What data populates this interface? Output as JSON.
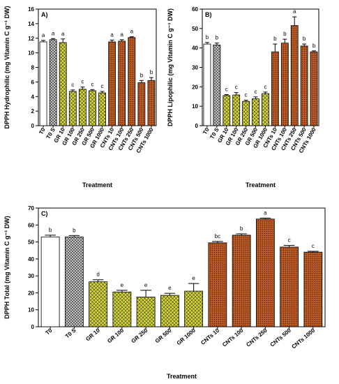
{
  "figure": {
    "panels": [
      {
        "id": "A",
        "panel_label": "A)"
      },
      {
        "id": "B",
        "panel_label": "B)"
      },
      {
        "id": "C",
        "panel_label": "C)"
      }
    ]
  },
  "chart_data": [
    {
      "type": "bar",
      "panel_label": "A)",
      "categories": [
        "T0",
        "T0 S",
        "GR 10",
        "GR 100",
        "GR 250",
        "GR 500",
        "GR 1000",
        "CNTs 10",
        "CNTs 100",
        "CNTs 250",
        "CNTs 500",
        "CNTs 1000"
      ],
      "values": [
        11.5,
        11.8,
        11.4,
        4.7,
        5.0,
        4.8,
        4.5,
        11.5,
        11.6,
        12.1,
        5.9,
        6.2
      ],
      "errors": [
        0.2,
        0.15,
        0.5,
        0.2,
        0.3,
        0.15,
        0.2,
        0.25,
        0.2,
        0.1,
        0.3,
        0.4
      ],
      "letters": [
        "a",
        "a",
        "a",
        "c",
        "c",
        "c",
        "c",
        "a",
        "a",
        "a",
        "b",
        "b"
      ],
      "xlabel": "Treatment",
      "ylabel": "DPPH Hydrophilic (mg Vitamin C g⁻¹ DW)",
      "ylim": [
        0,
        16
      ],
      "yticks": [
        0,
        2,
        4,
        6,
        8,
        10,
        12,
        14,
        16
      ],
      "grid": false,
      "fill_groups": [
        "white",
        "crosshatch",
        "yellow-green hatch",
        "brown dotted"
      ],
      "colors": {
        "white": "#ffffff",
        "gray": "#9a9a9a",
        "yellow": "#d4d43a",
        "brown": "#b5531f"
      }
    },
    {
      "type": "bar",
      "panel_label": "B)",
      "categories": [
        "T0",
        "T0 S",
        "GR 10",
        "GR 100",
        "GR 250",
        "GR 500",
        "GR 1000",
        "CNTs 10",
        "CNTs 100",
        "CNTs 250",
        "CNTs 500",
        "CNTs 1000"
      ],
      "values": [
        42,
        41.5,
        15.5,
        15.8,
        12.5,
        13.8,
        16.5,
        38,
        42.5,
        51.5,
        41,
        38
      ],
      "errors": [
        0.8,
        1.0,
        0.5,
        1.2,
        0.6,
        1.0,
        0.8,
        4.0,
        2.0,
        4.5,
        1.0,
        0.5
      ],
      "letters": [
        "b",
        "b",
        "c",
        "c",
        "c",
        "c",
        "c",
        "b",
        "b",
        "a",
        "b",
        "b"
      ],
      "xlabel": "Treatment",
      "ylabel": "DPPH Lipophilic (mg Vitamin C g⁻¹ DW)",
      "ylim": [
        0,
        60
      ],
      "yticks": [
        0,
        10,
        20,
        30,
        40,
        50,
        60
      ],
      "grid": false
    },
    {
      "type": "bar",
      "panel_label": "C)",
      "categories": [
        "T0",
        "T0 S",
        "GR 10",
        "GR 100",
        "GR 250",
        "GR 500",
        "GR 1000",
        "CNTs 10",
        "CNTs 100",
        "CNTs 250",
        "CNTs 500",
        "CNTs 1000"
      ],
      "values": [
        53,
        53,
        26.5,
        20.5,
        17.5,
        18.5,
        21,
        49.5,
        54,
        63.5,
        47,
        44
      ],
      "errors": [
        1.0,
        0.8,
        1.2,
        1.0,
        4.0,
        1.2,
        4.5,
        0.8,
        0.8,
        0.6,
        1.0,
        0.5
      ],
      "letters": [
        "b",
        "b",
        "d",
        "e",
        "e",
        "e",
        "e",
        "bc",
        "b",
        "a",
        "c",
        "c"
      ],
      "xlabel": "Treatment",
      "ylabel": "DPPH Total (mg Vitamin C g⁻¹ DW)",
      "ylim": [
        0,
        70
      ],
      "yticks": [
        0,
        10,
        20,
        30,
        40,
        50,
        60,
        70
      ],
      "grid": false
    }
  ]
}
